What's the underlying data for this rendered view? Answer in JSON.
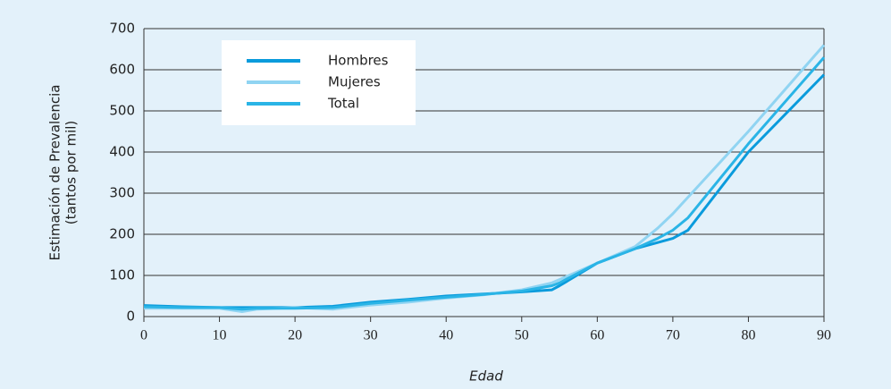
{
  "chart_data": {
    "type": "line",
    "xlabel": "Edad",
    "ylabel": [
      "Estimación de Prevalencia",
      "(tantos por mil)"
    ],
    "x": [
      0,
      5,
      10,
      13,
      15,
      20,
      25,
      30,
      35,
      40,
      45,
      50,
      54,
      55,
      60,
      65,
      68,
      70,
      72,
      80,
      90
    ],
    "series": [
      {
        "name": "Hombres",
        "color": "#0a9bdc",
        "values": [
          27,
          24,
          22,
          22,
          22,
          22,
          25,
          35,
          42,
          50,
          55,
          60,
          65,
          75,
          130,
          165,
          180,
          190,
          210,
          400,
          588
        ]
      },
      {
        "name": "Mujeres",
        "color": "#90d4f2",
        "values": [
          20,
          20,
          20,
          12,
          18,
          22,
          18,
          28,
          35,
          45,
          53,
          65,
          82,
          90,
          130,
          170,
          215,
          250,
          290,
          450,
          660
        ]
      },
      {
        "name": "Total",
        "color": "#2ab4e6",
        "values": [
          24,
          22,
          22,
          18,
          20,
          20,
          22,
          32,
          40,
          47,
          54,
          62,
          75,
          82,
          130,
          165,
          190,
          210,
          240,
          420,
          630
        ]
      }
    ],
    "xlim": [
      0,
      90
    ],
    "xticks": [
      0,
      10,
      20,
      30,
      40,
      50,
      60,
      70,
      80,
      90
    ],
    "ylim": [
      0,
      700
    ],
    "yticks": [
      0,
      100,
      200,
      300,
      400,
      500,
      600,
      700
    ],
    "grid": true,
    "legend": "upper left"
  }
}
